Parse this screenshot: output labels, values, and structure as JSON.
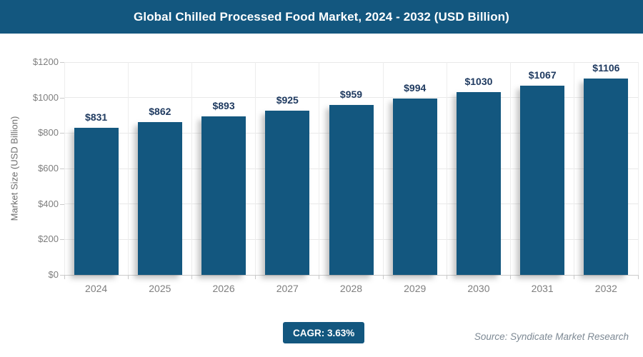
{
  "header": {
    "title": "Global Chilled Processed Food Market, 2024 - 2032 (USD Billion)"
  },
  "chart_data": {
    "type": "bar",
    "title": "Global Chilled Processed Food Market, 2024 - 2032 (USD Billion)",
    "categories": [
      "2024",
      "2025",
      "2026",
      "2027",
      "2028",
      "2029",
      "2030",
      "2031",
      "2032"
    ],
    "values": [
      831,
      862,
      893,
      925,
      959,
      994,
      1030,
      1067,
      1106
    ],
    "value_labels": [
      "$831",
      "$862",
      "$893",
      "$925",
      "$959",
      "$994",
      "$1030",
      "$1067",
      "$1106"
    ],
    "xlabel": "",
    "ylabel": "Market Size (USD Billion)",
    "ylim": [
      0,
      1200
    ],
    "ytick_interval": 200,
    "ytick_labels": [
      "$0",
      "$200",
      "$400",
      "$600",
      "$800",
      "$1000",
      "$1200"
    ],
    "grid": true,
    "legend": "none",
    "bar_color": "#13577F",
    "value_label_color": "#1F3A60"
  },
  "footer": {
    "cagr_label": "CAGR: 3.63%",
    "source": "Source: Syndicate Market Research"
  },
  "colors": {
    "primary": "#13577F",
    "axis_text": "#7E7E7E",
    "grid": "#E9E9E9"
  }
}
